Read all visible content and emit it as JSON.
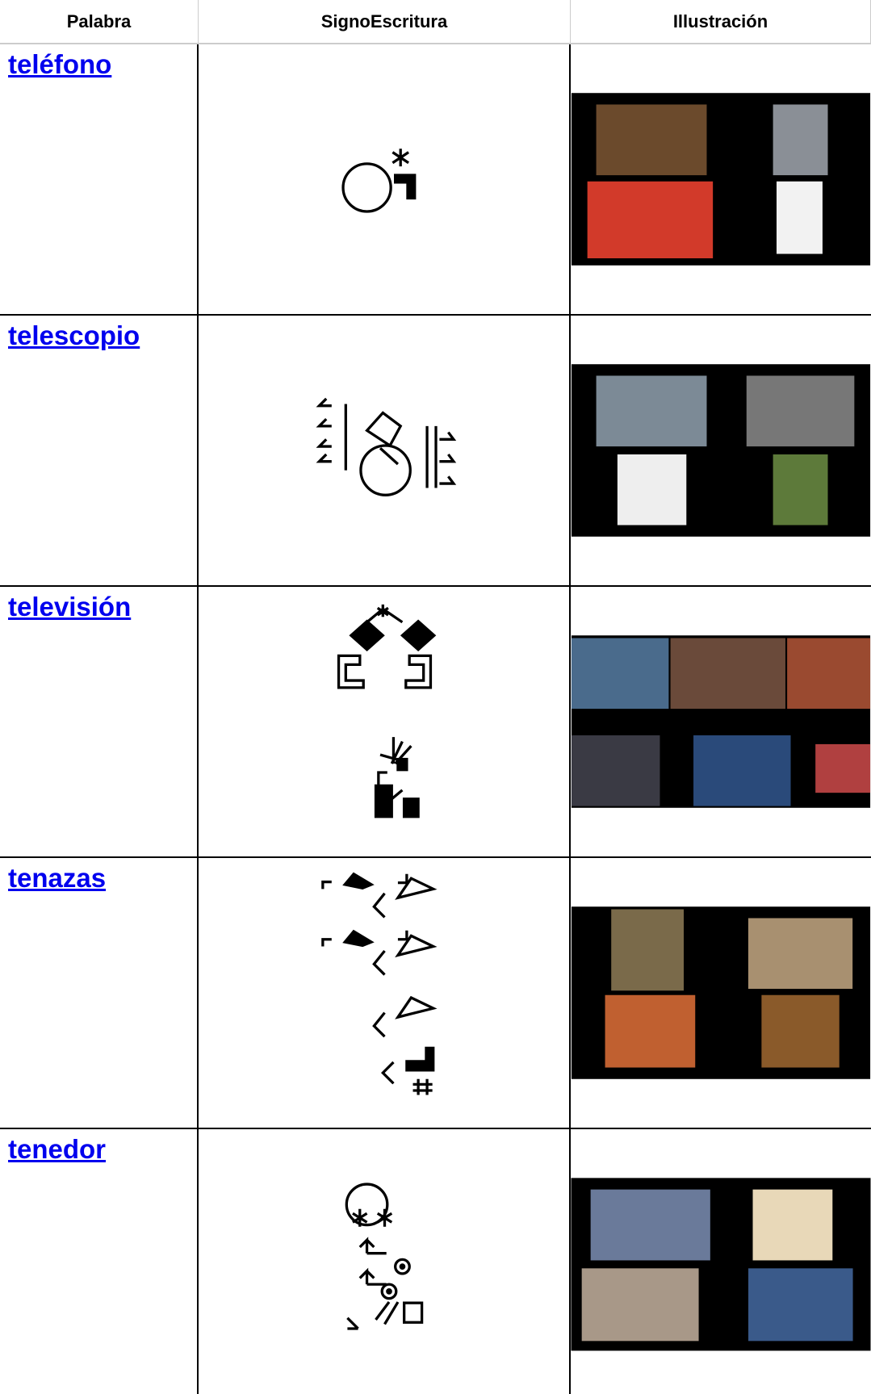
{
  "table": {
    "header": [
      "Palabra",
      "SignoEscritura",
      "Illustración"
    ],
    "rows": [
      [
        "teléfono"
      ],
      [
        "telescopio"
      ],
      [
        "televisión"
      ],
      [
        "tenazas"
      ],
      [
        "tenedor"
      ]
    ]
  }
}
